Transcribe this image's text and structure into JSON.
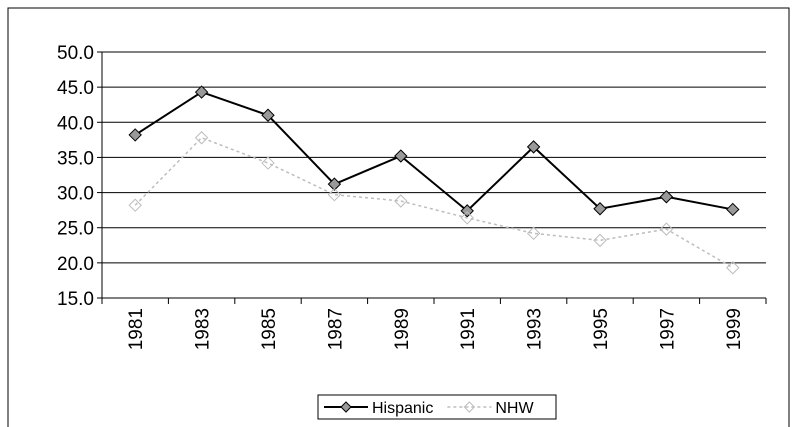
{
  "chart_data": {
    "type": "line",
    "categories": [
      "1981",
      "1983",
      "1985",
      "1987",
      "1989",
      "1991",
      "1993",
      "1995",
      "1997",
      "1999"
    ],
    "series": [
      {
        "name": "Hispanic",
        "color": "#000000",
        "values": [
          38.2,
          44.3,
          41.0,
          31.2,
          35.2,
          27.4,
          36.5,
          27.7,
          29.4,
          27.6
        ]
      },
      {
        "name": "NHW",
        "color": "#bdbdbd",
        "values": [
          28.2,
          37.8,
          34.2,
          29.7,
          28.8,
          26.4,
          24.2,
          23.2,
          24.8,
          19.3
        ]
      }
    ],
    "ylim": [
      15,
      50
    ],
    "yticks": [
      {
        "value": 15,
        "label": "15.0"
      },
      {
        "value": 20,
        "label": "20.0"
      },
      {
        "value": 25,
        "label": "25.0"
      },
      {
        "value": 30,
        "label": "30.0"
      },
      {
        "value": 35,
        "label": "35.0"
      },
      {
        "value": 40,
        "label": "40.0"
      },
      {
        "value": 45,
        "label": "45.0"
      },
      {
        "value": 50,
        "label": "50.0"
      }
    ],
    "grid": true,
    "legend": "bottom"
  }
}
